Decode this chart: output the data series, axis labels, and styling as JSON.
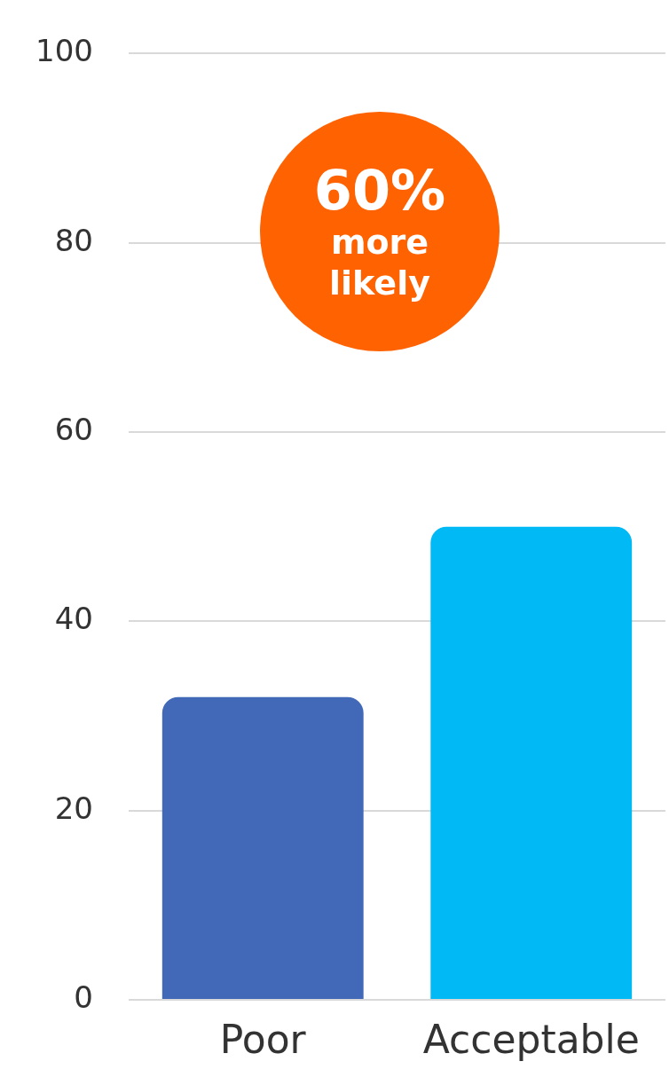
{
  "chart_data": {
    "type": "bar",
    "categories": [
      "Poor",
      "Acceptable"
    ],
    "values": [
      32,
      50
    ],
    "colors": [
      "#4169b8",
      "#00b9f5"
    ],
    "ylim": [
      0,
      100
    ],
    "yticks": [
      0,
      20,
      40,
      60,
      80,
      100
    ],
    "grid": "y",
    "annotations": [
      "60% more likely"
    ]
  }
}
